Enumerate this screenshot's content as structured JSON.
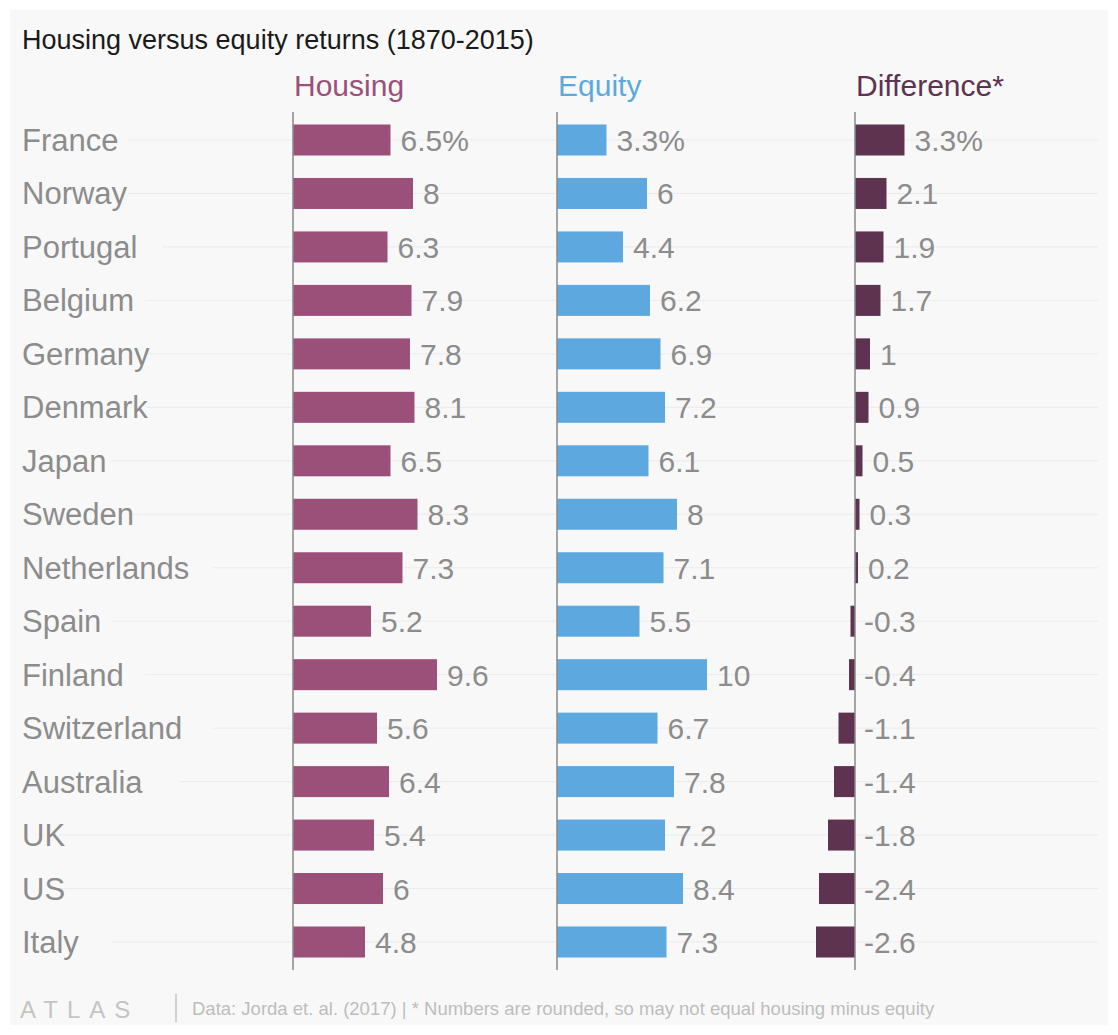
{
  "chart_data": {
    "type": "bar",
    "title": "Housing versus equity returns (1870-2015)",
    "orientation": "horizontal",
    "data_labels": true,
    "grid": true,
    "tick_labels": "y",
    "categories": [
      "France",
      "Norway",
      "Portugal",
      "Belgium",
      "Germany",
      "Denmark",
      "Japan",
      "Sweden",
      "Netherlands",
      "Spain",
      "Finland",
      "Switzerland",
      "Australia",
      "UK",
      "US",
      "Italy"
    ],
    "series": [
      {
        "name": "Housing",
        "color": "#9a5079",
        "values": [
          6.5,
          8,
          6.3,
          7.9,
          7.8,
          8.1,
          6.5,
          8.3,
          7.3,
          5.2,
          9.6,
          5.6,
          6.4,
          5.4,
          6,
          4.8
        ],
        "value_labels": [
          "6.5%",
          "8",
          "6.3",
          "7.9",
          "7.8",
          "8.1",
          "6.5",
          "8.3",
          "7.3",
          "5.2",
          "9.6",
          "5.6",
          "6.4",
          "5.4",
          "6",
          "4.8"
        ]
      },
      {
        "name": "Equity",
        "color": "#5ea8e0",
        "values": [
          3.3,
          6,
          4.4,
          6.2,
          6.9,
          7.2,
          6.1,
          8,
          7.1,
          5.5,
          10,
          6.7,
          7.8,
          7.2,
          8.4,
          7.3
        ],
        "value_labels": [
          "3.3%",
          "6",
          "4.4",
          "6.2",
          "6.9",
          "7.2",
          "6.1",
          "8",
          "7.1",
          "5.5",
          "10",
          "6.7",
          "7.8",
          "7.2",
          "8.4",
          "7.3"
        ]
      },
      {
        "name": "Difference*",
        "color": "#5e3350",
        "values": [
          3.3,
          2.1,
          1.9,
          1.7,
          1,
          0.9,
          0.5,
          0.3,
          0.2,
          -0.3,
          -0.4,
          -1.1,
          -1.4,
          -1.8,
          -2.4,
          -2.6
        ],
        "value_labels": [
          "3.3%",
          "2.1",
          "1.9",
          "1.7",
          "1",
          "0.9",
          "0.5",
          "0.3",
          "0.2",
          "-0.3",
          "-0.4",
          "-1.1",
          "-1.4",
          "-1.8",
          "-2.4",
          "-2.6"
        ]
      }
    ],
    "annotations": [
      "ATLAS",
      "Data: Jorda et. al. (2017) | * Numbers are rounded, so may not equal housing minus equity"
    ]
  }
}
